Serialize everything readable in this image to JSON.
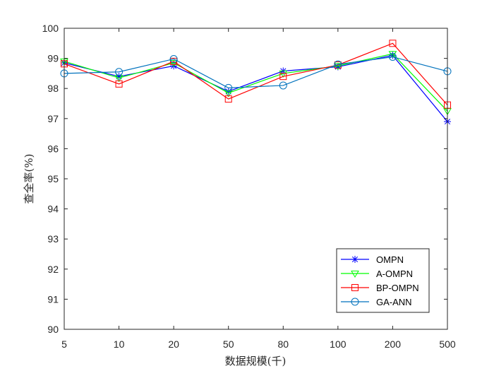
{
  "chart_data": {
    "type": "line",
    "title": "",
    "xlabel": "数据规模(千)",
    "ylabel": "查全率(%)",
    "categories": [
      "5",
      "10",
      "20",
      "50",
      "80",
      "100",
      "200",
      "500"
    ],
    "ylim": [
      90,
      100
    ],
    "yticks": [
      "90",
      "91",
      "92",
      "93",
      "94",
      "95",
      "96",
      "97",
      "98",
      "99",
      "100"
    ],
    "grid": false,
    "legend_position": "bottom-right",
    "series": [
      {
        "name": "OMPN",
        "color": "#0000FF",
        "marker": "asterisk",
        "values": [
          98.85,
          98.4,
          98.75,
          97.9,
          98.58,
          98.72,
          99.1,
          96.9
        ]
      },
      {
        "name": "A-OMPN",
        "color": "#00FF00",
        "marker": "triangle-down",
        "values": [
          98.9,
          98.35,
          98.85,
          97.85,
          98.5,
          98.75,
          99.15,
          97.25
        ]
      },
      {
        "name": "BP-OMPN",
        "color": "#FF0000",
        "marker": "square",
        "values": [
          98.82,
          98.15,
          98.9,
          97.65,
          98.4,
          98.78,
          99.5,
          97.45
        ]
      },
      {
        "name": "GA-ANN",
        "color": "#0072BD",
        "marker": "circle",
        "values": [
          98.5,
          98.55,
          98.98,
          98.02,
          98.1,
          98.8,
          99.05,
          98.57
        ]
      }
    ]
  }
}
